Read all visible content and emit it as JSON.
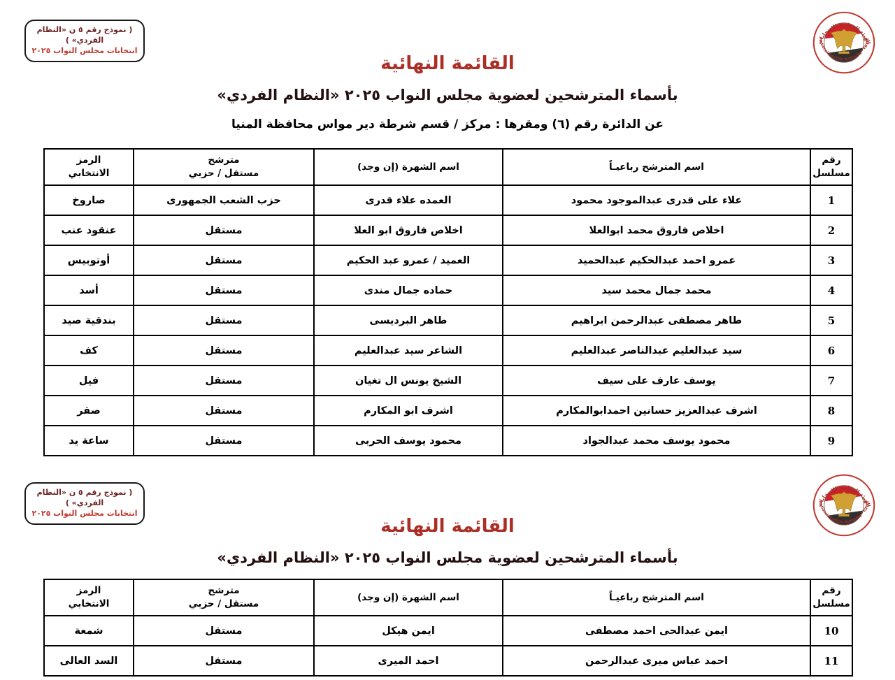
{
  "form_box": {
    "line1": "( نموذج رقم ٥ ن «النظام الفردي» )",
    "line2": "انتخابات مجلس النواب ٢٠٢٥"
  },
  "logo": {
    "arabic": "الهيئة الوطنية للانتخابات",
    "english": "National Election Authority - Egypt"
  },
  "colors": {
    "title_red": "#ab2f26",
    "box_line_red": "#c3392e",
    "box_line_maroon": "#6e2222",
    "flag_red": "#ce2029",
    "flag_black": "#332f2f",
    "eagle_gold": "#d1a033"
  },
  "sections": [
    {
      "title": "القائمة النهائية",
      "subtitle": "بأسماء المترشحين لعضوية مجلس النواب ٢٠٢٥ «النظام الفردي»",
      "district_line": "عن الدائرة رقم (٦)   ومقرها : مركز / قسم شرطة دير مواس    محافظة  المنيا",
      "table": {
        "headers": {
          "serial": "رقم\nمسلسل",
          "name": "اسم المترشح رباعيـاً",
          "famous": "اسم الشهرة (إن وجد)",
          "party": "مترشح\nمستقل / حزبي",
          "symbol": "الرمز\nالانتخابي"
        },
        "rows": [
          {
            "serial": "1",
            "name": "علاء على قدرى عبدالموجود محمود",
            "famous": "العمده علاء قدرى",
            "party": "حزب الشعب الجمهورى",
            "symbol": "صاروخ"
          },
          {
            "serial": "2",
            "name": "اخلاص فاروق محمد ابوالعلا",
            "famous": "اخلاص فاروق ابو العلا",
            "party": "مستقل",
            "symbol": "عنقود عنب"
          },
          {
            "serial": "3",
            "name": "عمرو احمد عبدالحكيم عبدالحميد",
            "famous": "العميد / عمرو عبد الحكيم",
            "party": "مستقل",
            "symbol": "أوتوبيس"
          },
          {
            "serial": "4",
            "name": "محمد جمال محمد سيد",
            "famous": "حماده جمال مندى",
            "party": "مستقل",
            "symbol": "أسد"
          },
          {
            "serial": "5",
            "name": "طاهر مصطفى عبدالرحمن ابراهيم",
            "famous": "طاهر البرديسى",
            "party": "مستقل",
            "symbol": "بندقية صيد"
          },
          {
            "serial": "6",
            "name": "سيد عبدالعليم عبدالناصر عبدالعليم",
            "famous": "الشاعر سيد عبدالعليم",
            "party": "مستقل",
            "symbol": "كف"
          },
          {
            "serial": "7",
            "name": "يوسف عارف على سيف",
            "famous": "الشيخ يونس ال تغيان",
            "party": "مستقل",
            "symbol": "فيل"
          },
          {
            "serial": "8",
            "name": "اشرف عبدالعزيز حسانين احمدابوالمكارم",
            "famous": "اشرف ابو المكارم",
            "party": "مستقل",
            "symbol": "صقر"
          },
          {
            "serial": "9",
            "name": "محمود يوسف محمد عبدالجواد",
            "famous": "محمود يوسف الحربى",
            "party": "مستقل",
            "symbol": "ساعة يد"
          }
        ]
      }
    },
    {
      "title": "القائمة النهائية",
      "subtitle": "بأسماء المترشحين لعضوية مجلس النواب ٢٠٢٥ «النظام الفردي»",
      "table": {
        "headers": {
          "serial": "رقم\nمسلسل",
          "name": "اسم المترشح رباعيـاً",
          "famous": "اسم الشهرة (إن وجد)",
          "party": "مترشح\nمستقل / حزبي",
          "symbol": "الرمز\nالانتخابي"
        },
        "rows": [
          {
            "serial": "10",
            "name": "ايمن عبدالحى احمد مصطفى",
            "famous": "ايمن هيكل",
            "party": "مستقل",
            "symbol": "شمعة"
          },
          {
            "serial": "11",
            "name": "احمد عباس ميرى عبدالرحمن",
            "famous": "احمد الميرى",
            "party": "مستقل",
            "symbol": "السد العالى"
          }
        ]
      }
    }
  ]
}
